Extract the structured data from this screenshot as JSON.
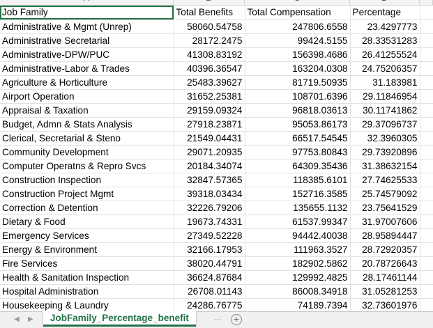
{
  "column_headers": [
    "A",
    "B",
    "C",
    "D"
  ],
  "header_row": [
    "Job Family",
    "Total Benefits",
    "Total Compensation",
    "Percentage"
  ],
  "rows": [
    [
      "Administrative & Mgmt (Unrep)",
      "58060.54758",
      "247806.6558",
      "23.4297773"
    ],
    [
      "Administrative Secretarial",
      "28172.2475",
      "99424.5155",
      "28.33531283"
    ],
    [
      "Administrative-DPW/PUC",
      "41308.83192",
      "156398.4686",
      "26.41255524"
    ],
    [
      "Administrative-Labor & Trades",
      "40396.36547",
      "163204.0308",
      "24.75206357"
    ],
    [
      "Agriculture & Horticulture",
      "25483.39627",
      "81719.50935",
      "31.183981"
    ],
    [
      "Airport Operation",
      "31652.25381",
      "108701.6396",
      "29.11846954"
    ],
    [
      "Appraisal & Taxation",
      "29159.09324",
      "96818.03613",
      "30.11741862"
    ],
    [
      "Budget, Admn & Stats Analysis",
      "27918.23871",
      "95053.86173",
      "29.37096737"
    ],
    [
      "Clerical, Secretarial & Steno",
      "21549.04431",
      "66517.54545",
      "32.3960305"
    ],
    [
      "Community Development",
      "29071.20935",
      "97753.80843",
      "29.73920896"
    ],
    [
      "Computer Operatns & Repro Svcs",
      "20184.34074",
      "64309.35436",
      "31.38632154"
    ],
    [
      "Construction Inspection",
      "32847.57365",
      "118385.6101",
      "27.74625533"
    ],
    [
      "Construction Project Mgmt",
      "39318.03434",
      "152716.3585",
      "25.74579092"
    ],
    [
      "Correction & Detention",
      "32226.79206",
      "135655.1132",
      "23.75641529"
    ],
    [
      "Dietary & Food",
      "19673.74331",
      "61537.99347",
      "31.97007606"
    ],
    [
      "Emergency Services",
      "27349.52228",
      "94442.40038",
      "28.95894447"
    ],
    [
      "Energy & Environment",
      "32166.17953",
      "111963.3527",
      "28.72920357"
    ],
    [
      "Fire Services",
      "38020.44791",
      "182902.5862",
      "20.78726643"
    ],
    [
      "Health & Sanitation Inspection",
      "36624.87684",
      "129992.4825",
      "28.17461144"
    ],
    [
      "Hospital Administration",
      "26708.01143",
      "86008.34918",
      "31.05281253"
    ],
    [
      "Housekeeping & Laundry",
      "24286.76775",
      "74189.7394",
      "32.73601976"
    ]
  ],
  "sheet_tab": "JobFamily_Percentage_benefit",
  "icons": {
    "add_sheet": "plus-circle-icon",
    "nav_prev": "triangle-left-icon",
    "nav_next": "triangle-right-icon"
  },
  "colors": {
    "accent": "#217346",
    "gridline": "#e2e2e2"
  }
}
